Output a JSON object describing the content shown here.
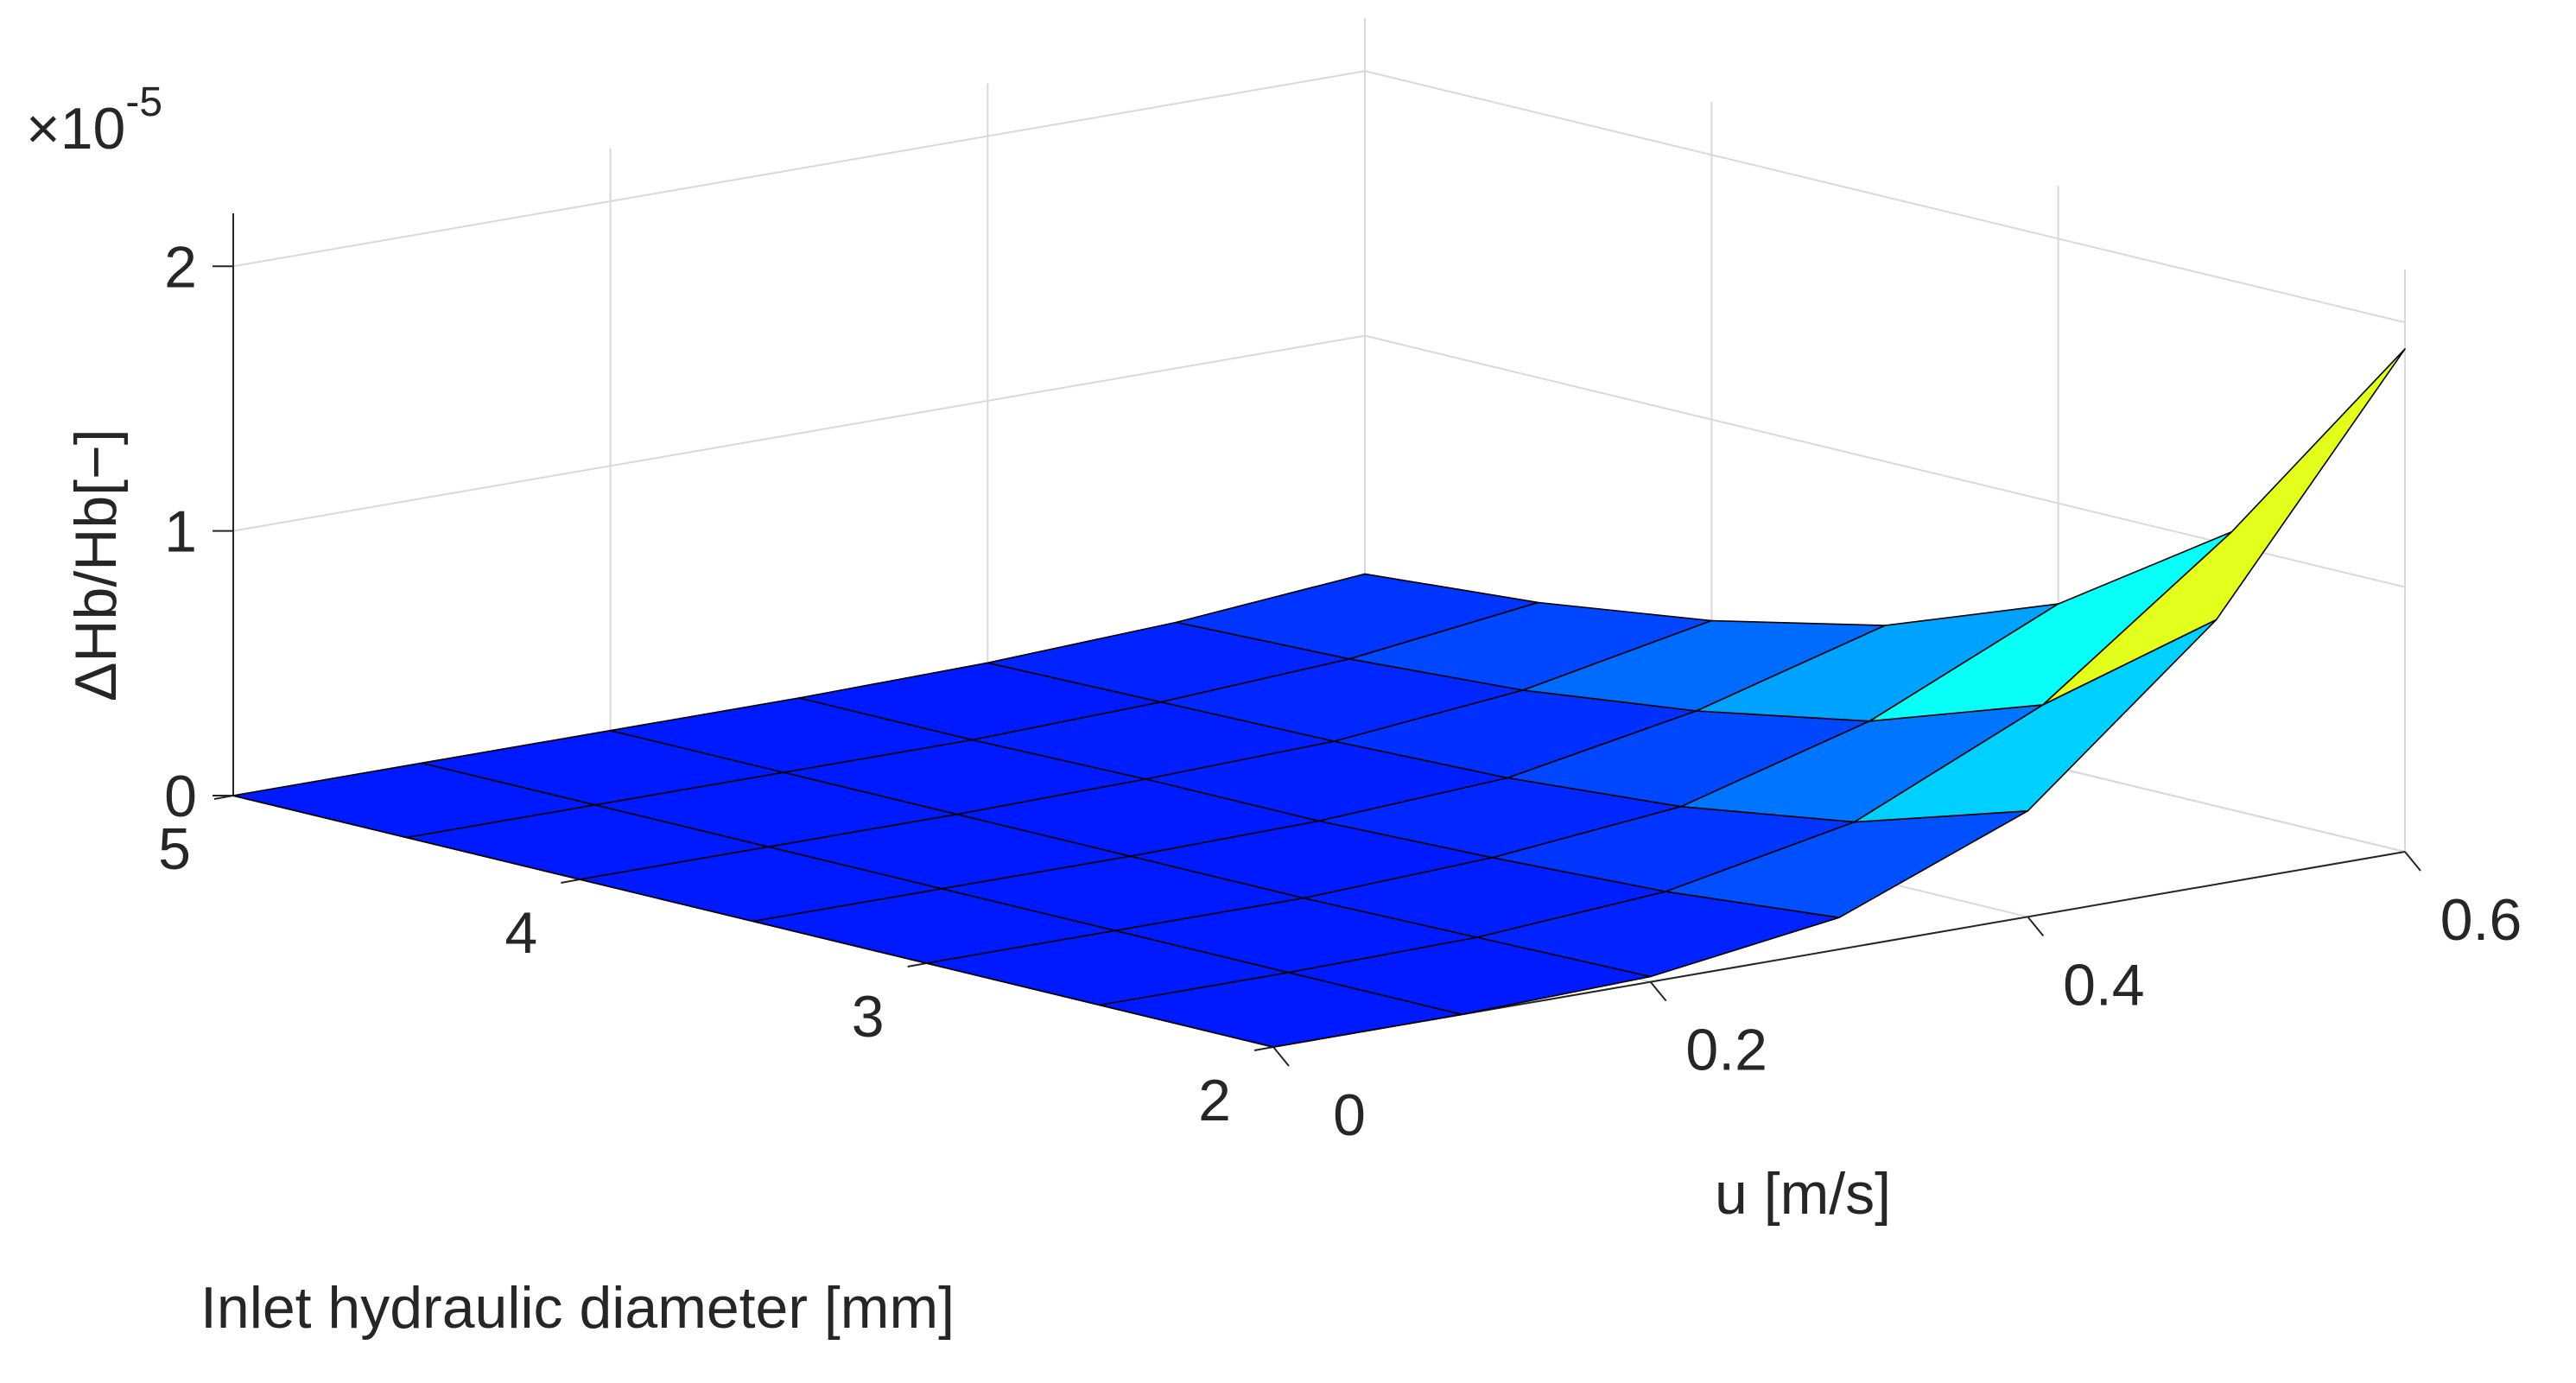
{
  "chart_data": {
    "type": "surface",
    "exponent_label": "×10-5",
    "xlabel": "u [m/s]",
    "ylabel": "Inlet hydraulic diameter [mm]",
    "zlabel": "ΔHb/Hb[−]",
    "x": [
      0,
      0.1,
      0.2,
      0.3,
      0.4,
      0.5,
      0.6
    ],
    "y": [
      2,
      2.5,
      3,
      3.5,
      4,
      4.5,
      5
    ],
    "z_scale": 1e-05,
    "z": [
      [
        0.0,
        0.0,
        0.02,
        0.12,
        0.4,
        1.0,
        1.9
      ],
      [
        0.0,
        0.0,
        0.01,
        0.06,
        0.2,
        0.52,
        1.05
      ],
      [
        0.0,
        0.0,
        0.0,
        0.03,
        0.1,
        0.3,
        0.62
      ],
      [
        0.0,
        0.0,
        0.0,
        0.01,
        0.05,
        0.18,
        0.38
      ],
      [
        0.0,
        0.0,
        0.0,
        0.01,
        0.03,
        0.1,
        0.24
      ],
      [
        0.0,
        0.0,
        0.0,
        0.0,
        0.02,
        0.06,
        0.15
      ],
      [
        0.0,
        0.0,
        0.0,
        0.0,
        0.01,
        0.04,
        0.1
      ]
    ],
    "xlim": [
      0,
      0.6
    ],
    "ylim": [
      2,
      5
    ],
    "zlim": [
      0,
      2.2
    ],
    "xticks": [
      {
        "value": 0,
        "label": "0"
      },
      {
        "value": 0.2,
        "label": "0.2"
      },
      {
        "value": 0.4,
        "label": "0.4"
      },
      {
        "value": 0.6,
        "label": "0.6"
      }
    ],
    "yticks": [
      {
        "value": 2,
        "label": "2"
      },
      {
        "value": 3,
        "label": "3"
      },
      {
        "value": 4,
        "label": "4"
      },
      {
        "value": 5,
        "label": "5"
      }
    ],
    "zticks": [
      {
        "value": 0,
        "label": "0"
      },
      {
        "value": 1,
        "label": "1"
      },
      {
        "value": 2,
        "label": "2"
      }
    ],
    "colormap": "jet",
    "grid": true
  }
}
